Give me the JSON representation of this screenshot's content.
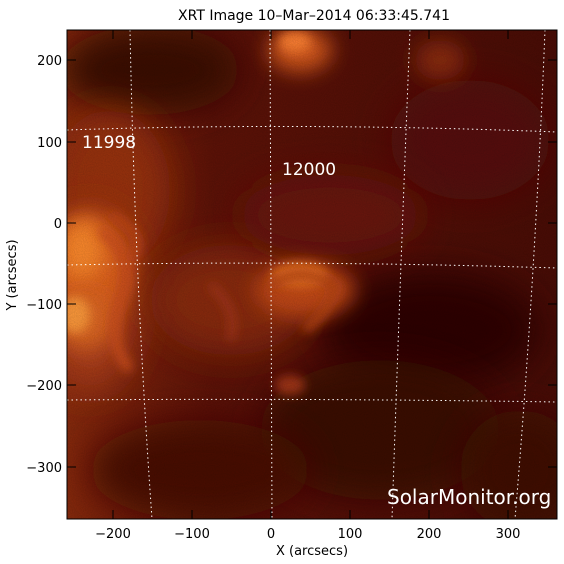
{
  "title": "XRT Image 10–Mar–2014 06:33:45.741",
  "x_axis": {
    "label": "X (arcsecs)",
    "ticks": [
      "−200",
      "−100",
      "0",
      "100",
      "200",
      "300"
    ]
  },
  "y_axis": {
    "label": "Y (arcsecs)",
    "ticks": [
      "200",
      "100",
      "0",
      "−100",
      "−200",
      "−300"
    ]
  },
  "active_regions": [
    "11998",
    "12000"
  ],
  "watermark": "SolarMonitor.org",
  "colors": {
    "background": "#ffffff",
    "frame": "#000000",
    "image_dark": "#3a0703",
    "image_mid": "#7a1a08",
    "image_bright": "#ff8a20",
    "grid": "#ffffff"
  }
}
